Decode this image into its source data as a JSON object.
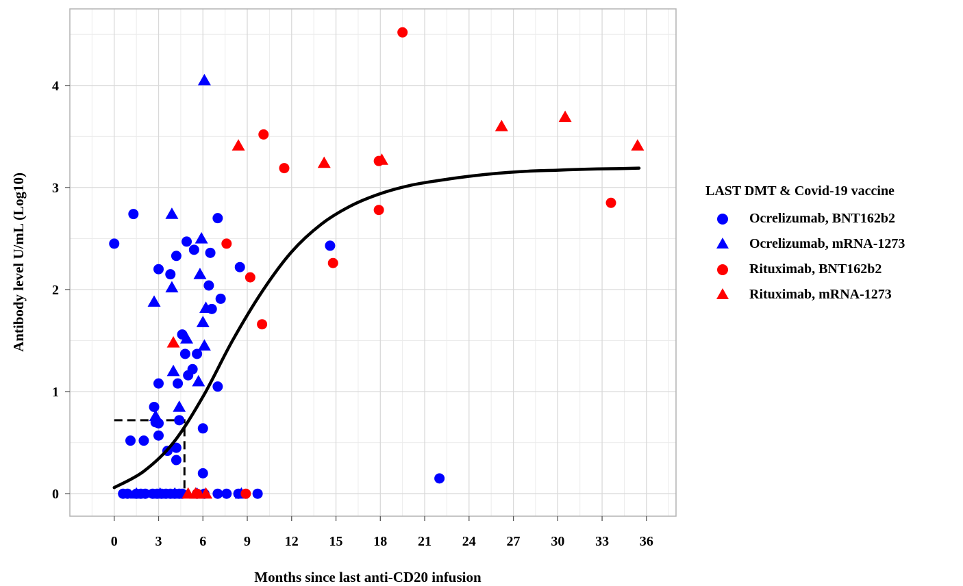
{
  "chart_data": {
    "type": "scatter",
    "xlabel": "Months since last anti-CD20 infusion",
    "ylabel": "Antibody level U/mL (Log10)",
    "xlim": [
      -3,
      38
    ],
    "ylim": [
      -0.22,
      4.75
    ],
    "x_ticks": [
      0,
      3,
      6,
      9,
      12,
      15,
      18,
      21,
      24,
      27,
      30,
      33,
      36
    ],
    "x_tick_labels": [
      "0",
      "3",
      "6",
      "9",
      "12",
      "15",
      "18",
      "21",
      "24",
      "27",
      "30",
      "33",
      "36"
    ],
    "y_ticks": [
      0,
      1,
      2,
      3,
      4
    ],
    "y_tick_labels": [
      "0",
      "1",
      "2",
      "3",
      "4"
    ],
    "grid": true,
    "legend": {
      "title": "LAST DMT & Covid-19 vaccine",
      "position": "right"
    },
    "series": [
      {
        "name": "Ocrelizumab, BNT162b2",
        "marker": "circle",
        "color": "#0000ff",
        "points": [
          [
            0.0,
            2.45
          ],
          [
            1.3,
            2.74
          ],
          [
            3.0,
            2.2
          ],
          [
            3.8,
            2.15
          ],
          [
            4.2,
            2.33
          ],
          [
            4.9,
            2.47
          ],
          [
            5.4,
            2.39
          ],
          [
            6.5,
            2.36
          ],
          [
            7.0,
            2.7
          ],
          [
            8.5,
            2.22
          ],
          [
            6.4,
            2.04
          ],
          [
            7.2,
            1.91
          ],
          [
            6.6,
            1.81
          ],
          [
            4.6,
            1.56
          ],
          [
            4.8,
            1.37
          ],
          [
            5.6,
            1.37
          ],
          [
            5.3,
            1.22
          ],
          [
            5.0,
            1.16
          ],
          [
            3.0,
            1.08
          ],
          [
            4.3,
            1.08
          ],
          [
            7.0,
            1.05
          ],
          [
            2.7,
            0.85
          ],
          [
            4.4,
            0.72
          ],
          [
            2.8,
            0.7
          ],
          [
            3.0,
            0.69
          ],
          [
            6.0,
            0.64
          ],
          [
            3.0,
            0.57
          ],
          [
            1.1,
            0.52
          ],
          [
            2.0,
            0.52
          ],
          [
            3.6,
            0.42
          ],
          [
            4.2,
            0.45
          ],
          [
            4.2,
            0.33
          ],
          [
            6.0,
            0.2
          ],
          [
            14.6,
            2.43
          ],
          [
            22.0,
            0.15
          ],
          [
            0.6,
            0.0
          ],
          [
            0.9,
            0.0
          ],
          [
            1.5,
            0.0
          ],
          [
            1.8,
            0.0
          ],
          [
            2.1,
            0.0
          ],
          [
            2.6,
            0.0
          ],
          [
            2.9,
            0.0
          ],
          [
            3.2,
            0.0
          ],
          [
            3.5,
            0.0
          ],
          [
            3.8,
            0.0
          ],
          [
            4.1,
            0.0
          ],
          [
            4.4,
            0.0
          ],
          [
            4.6,
            0.0
          ],
          [
            5.6,
            0.0
          ],
          [
            6.1,
            0.0
          ],
          [
            7.0,
            0.0
          ],
          [
            7.6,
            0.0
          ],
          [
            8.4,
            0.0
          ],
          [
            9.7,
            0.0
          ]
        ]
      },
      {
        "name": "Ocrelizumab, mRNA-1273",
        "marker": "triangle",
        "color": "#0000ff",
        "points": [
          [
            6.1,
            4.05
          ],
          [
            3.9,
            2.74
          ],
          [
            5.9,
            2.5
          ],
          [
            5.8,
            2.15
          ],
          [
            3.9,
            2.02
          ],
          [
            2.7,
            1.88
          ],
          [
            6.2,
            1.82
          ],
          [
            6.0,
            1.68
          ],
          [
            4.9,
            1.52
          ],
          [
            6.1,
            1.45
          ],
          [
            4.0,
            1.2
          ],
          [
            5.7,
            1.1
          ],
          [
            4.4,
            0.85
          ],
          [
            2.8,
            0.76
          ],
          [
            1.5,
            0.0
          ],
          [
            3.1,
            0.0
          ],
          [
            4.1,
            0.0
          ],
          [
            5.6,
            0.0
          ],
          [
            8.6,
            0.0
          ]
        ]
      },
      {
        "name": "Rituximab, BNT162b2",
        "marker": "circle",
        "color": "#ff0000",
        "points": [
          [
            19.5,
            4.52
          ],
          [
            10.1,
            3.52
          ],
          [
            11.5,
            3.19
          ],
          [
            17.9,
            3.26
          ],
          [
            17.9,
            2.78
          ],
          [
            33.6,
            2.85
          ],
          [
            7.6,
            2.45
          ],
          [
            9.2,
            2.12
          ],
          [
            14.8,
            2.26
          ],
          [
            10.0,
            1.66
          ],
          [
            5.6,
            0.0
          ],
          [
            8.9,
            0.0
          ]
        ]
      },
      {
        "name": "Rituximab, mRNA-1273",
        "marker": "triangle",
        "color": "#ff0000",
        "points": [
          [
            4.0,
            1.48
          ],
          [
            8.4,
            3.41
          ],
          [
            14.2,
            3.24
          ],
          [
            18.1,
            3.27
          ],
          [
            26.2,
            3.6
          ],
          [
            30.5,
            3.69
          ],
          [
            35.4,
            3.41
          ],
          [
            5.0,
            0.0
          ],
          [
            5.5,
            0.0
          ],
          [
            6.2,
            0.0
          ]
        ]
      }
    ],
    "fit_curve": {
      "style": "solid black",
      "points": [
        [
          0,
          0.06
        ],
        [
          2,
          0.22
        ],
        [
          4,
          0.5
        ],
        [
          6,
          0.95
        ],
        [
          8,
          1.5
        ],
        [
          10,
          1.98
        ],
        [
          12,
          2.37
        ],
        [
          14,
          2.64
        ],
        [
          16,
          2.82
        ],
        [
          18,
          2.94
        ],
        [
          20,
          3.02
        ],
        [
          22,
          3.07
        ],
        [
          24,
          3.11
        ],
        [
          26,
          3.14
        ],
        [
          28,
          3.16
        ],
        [
          30,
          3.17
        ],
        [
          32,
          3.18
        ],
        [
          34,
          3.185
        ],
        [
          35.5,
          3.19
        ]
      ]
    },
    "reference_lines": {
      "style": "dashed black",
      "x": 4.75,
      "y": 0.72
    }
  }
}
